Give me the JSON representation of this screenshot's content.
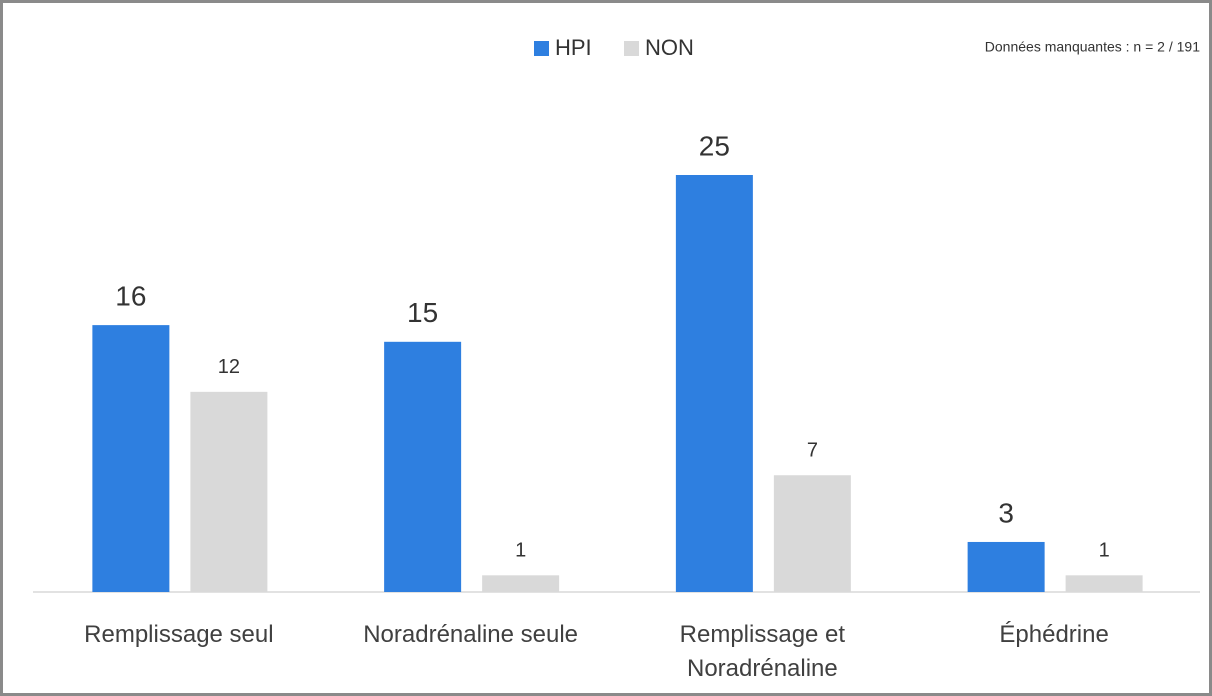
{
  "chart_data": {
    "type": "bar",
    "annotation": "Données manquantes : n = 2 / 191",
    "categories": [
      "Remplissage seul",
      "Noradrénaline seule",
      "Remplissage et Noradrénaline",
      "Éphédrine"
    ],
    "series": [
      {
        "name": "HPI",
        "color": "#2e7fe0",
        "values": [
          16,
          15,
          25,
          3
        ]
      },
      {
        "name": "NON",
        "color": "#d9d9d9",
        "values": [
          12,
          1,
          7,
          1
        ]
      }
    ],
    "ylim": [
      0,
      25
    ],
    "legend": "top"
  }
}
